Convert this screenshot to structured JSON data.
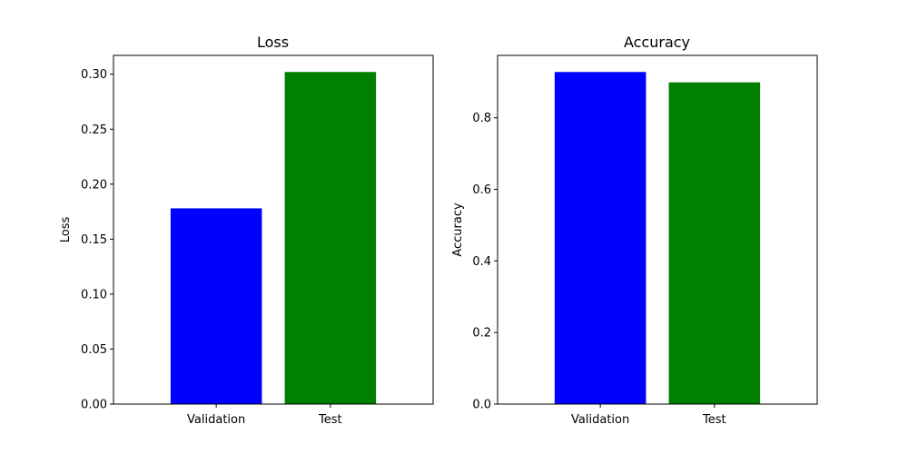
{
  "chart_data": [
    {
      "type": "bar",
      "title": "Loss",
      "xlabel": "",
      "ylabel": "Loss",
      "categories": [
        "Validation",
        "Test"
      ],
      "values": [
        0.178,
        0.302
      ],
      "colors": [
        "#0000ff",
        "#008000"
      ],
      "ylim": [
        0,
        0.3171
      ],
      "yticks": [
        0.0,
        0.05,
        0.1,
        0.15,
        0.2,
        0.25,
        0.3
      ],
      "ytick_labels": [
        "0.00",
        "0.05",
        "0.10",
        "0.15",
        "0.20",
        "0.25",
        "0.30"
      ],
      "grid": false,
      "legend": null
    },
    {
      "type": "bar",
      "title": "Accuracy",
      "xlabel": "",
      "ylabel": "Accuracy",
      "categories": [
        "Validation",
        "Test"
      ],
      "values": [
        0.928,
        0.899
      ],
      "colors": [
        "#0000ff",
        "#008000"
      ],
      "ylim": [
        0,
        0.9744
      ],
      "yticks": [
        0.0,
        0.2,
        0.4,
        0.6,
        0.8
      ],
      "ytick_labels": [
        "0.0",
        "0.2",
        "0.4",
        "0.6",
        "0.8"
      ],
      "grid": false,
      "legend": null
    }
  ]
}
